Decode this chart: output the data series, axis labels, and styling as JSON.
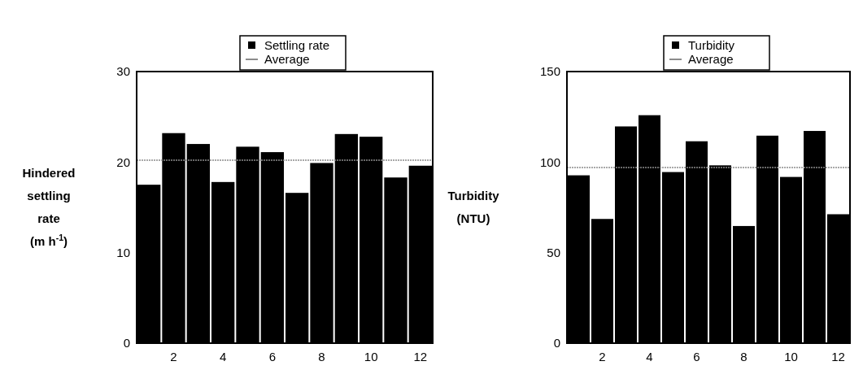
{
  "chart_data": [
    {
      "type": "bar",
      "ylabel": "Hindered settling rate (m h$^{-1}$)",
      "x": [
        1,
        2,
        3,
        4,
        5,
        6,
        7,
        8,
        9,
        10,
        11,
        12
      ],
      "xlim": [
        0.5,
        12.5
      ],
      "xticks": [
        2,
        4,
        6,
        8,
        10,
        12
      ],
      "ylim": [
        0,
        30
      ],
      "yticks": [
        0,
        10,
        20,
        30
      ],
      "series": [
        {
          "name": "Settling rate",
          "color": "#000000",
          "values": [
            17.5,
            23.2,
            22.0,
            17.8,
            21.7,
            21.1,
            16.6,
            19.9,
            23.1,
            22.8,
            18.3,
            19.6
          ]
        }
      ],
      "ref_lines": [
        {
          "axis": "y",
          "value": 20.2,
          "label": "Average",
          "color": "#8c8c8c"
        }
      ],
      "legend": "top"
    },
    {
      "type": "bar",
      "ylabel": "Turbidity (NTU)",
      "x": [
        1,
        2,
        3,
        4,
        5,
        6,
        7,
        8,
        9,
        10,
        11,
        12
      ],
      "xlim": [
        0.5,
        12.5
      ],
      "xticks": [
        2,
        4,
        6,
        8,
        10,
        12
      ],
      "ylim": [
        0,
        150
      ],
      "yticks": [
        0,
        50,
        100,
        150
      ],
      "series": [
        {
          "name": "Turbidity",
          "color": "#000000",
          "values": [
            92.7,
            68.6,
            119.7,
            125.9,
            94.5,
            111.5,
            98.2,
            64.7,
            114.6,
            91.8,
            117.2,
            71.2
          ]
        }
      ],
      "ref_lines": [
        {
          "axis": "y",
          "value": 97.0,
          "label": "Average",
          "color": "#8c8c8c"
        }
      ],
      "legend": "top"
    }
  ]
}
